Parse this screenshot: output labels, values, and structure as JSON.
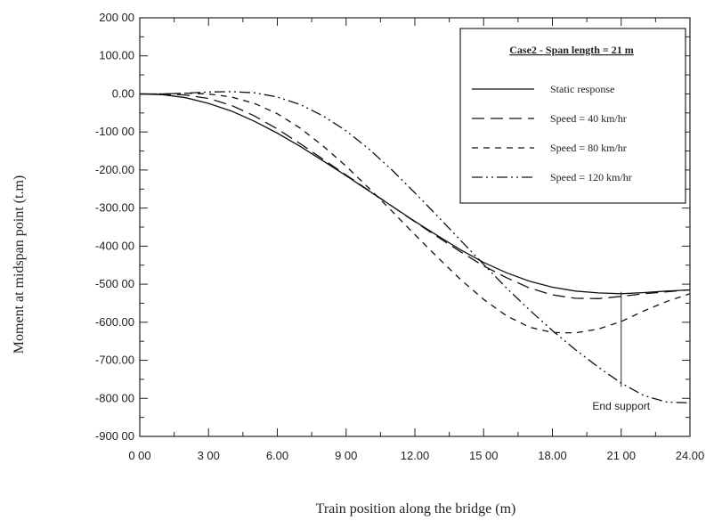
{
  "chart_data": {
    "type": "line",
    "xlabel": "Train position along the bridge (m)",
    "ylabel": "Moment at midspan point (t.m)",
    "xlim": [
      0,
      24
    ],
    "ylim": [
      -900,
      200
    ],
    "x_ticks": [
      0,
      3,
      6,
      9,
      12,
      15,
      18,
      21,
      24
    ],
    "x_tick_labels": [
      "0 00",
      "3 00",
      "6.00",
      "9 00",
      "12.00",
      "15 00",
      "18.00",
      "21 00",
      "24.00"
    ],
    "y_ticks": [
      200,
      100,
      0,
      -100,
      -200,
      -300,
      -400,
      -500,
      -600,
      -700,
      -800,
      -900
    ],
    "y_tick_labels": [
      "200 00",
      "100.00",
      "0.00",
      "-100 00",
      "-200.00",
      "-300.00",
      "-400 00",
      "-500 00",
      "-600.00",
      "-700.00",
      "-800 00",
      "-900 00"
    ],
    "grid": false,
    "legend": {
      "title": "Case2 - Span length = 21 m",
      "position": "top-right"
    },
    "series": [
      {
        "name": "Static response",
        "dash": "solid",
        "x": [
          0,
          1,
          2,
          3,
          4,
          5,
          6,
          7,
          8,
          9,
          10,
          11,
          12,
          13,
          14,
          15,
          16,
          17,
          18,
          19,
          20,
          21,
          22,
          23,
          24
        ],
        "y": [
          0,
          -2,
          -10,
          -25,
          -45,
          -72,
          -103,
          -138,
          -176,
          -215,
          -255,
          -295,
          -335,
          -373,
          -410,
          -443,
          -470,
          -492,
          -508,
          -518,
          -523,
          -525,
          -522,
          -518,
          -515
        ]
      },
      {
        "name": "Speed = 40 km/hr",
        "dash": "long",
        "x": [
          0,
          1,
          2,
          3,
          4,
          5,
          6,
          7,
          8,
          9,
          10,
          11,
          12,
          13,
          14,
          15,
          16,
          17,
          18,
          19,
          20,
          21,
          22,
          23,
          24
        ],
        "y": [
          0,
          0,
          -3,
          -12,
          -30,
          -58,
          -92,
          -131,
          -172,
          -213,
          -254,
          -295,
          -336,
          -376,
          -415,
          -452,
          -483,
          -510,
          -528,
          -537,
          -538,
          -532,
          -525,
          -520,
          -515
        ]
      },
      {
        "name": "Speed = 80 km/hr",
        "dash": "short",
        "x": [
          0,
          1,
          2,
          3,
          4,
          5,
          6,
          7,
          8,
          9,
          10,
          11,
          12,
          13,
          14,
          15,
          16,
          17,
          18,
          19,
          20,
          21,
          22,
          23,
          24
        ],
        "y": [
          0,
          0,
          2,
          0,
          -8,
          -25,
          -52,
          -90,
          -137,
          -190,
          -248,
          -308,
          -370,
          -430,
          -488,
          -540,
          -583,
          -613,
          -627,
          -628,
          -618,
          -598,
          -570,
          -545,
          -525
        ]
      },
      {
        "name": "Speed = 120 km/hr",
        "dash": "dashdotdot",
        "x": [
          0,
          1,
          2,
          3,
          4,
          5,
          6,
          7,
          8,
          9,
          10,
          11,
          12,
          13,
          14,
          15,
          16,
          17,
          18,
          19,
          20,
          21,
          22,
          23,
          24
        ],
        "y": [
          0,
          0,
          2,
          5,
          6,
          3,
          -8,
          -28,
          -58,
          -97,
          -145,
          -200,
          -260,
          -322,
          -385,
          -448,
          -510,
          -568,
          -622,
          -672,
          -718,
          -760,
          -793,
          -810,
          -812
        ]
      }
    ],
    "annotations": [
      {
        "text": "End support",
        "x": 21
      }
    ]
  }
}
